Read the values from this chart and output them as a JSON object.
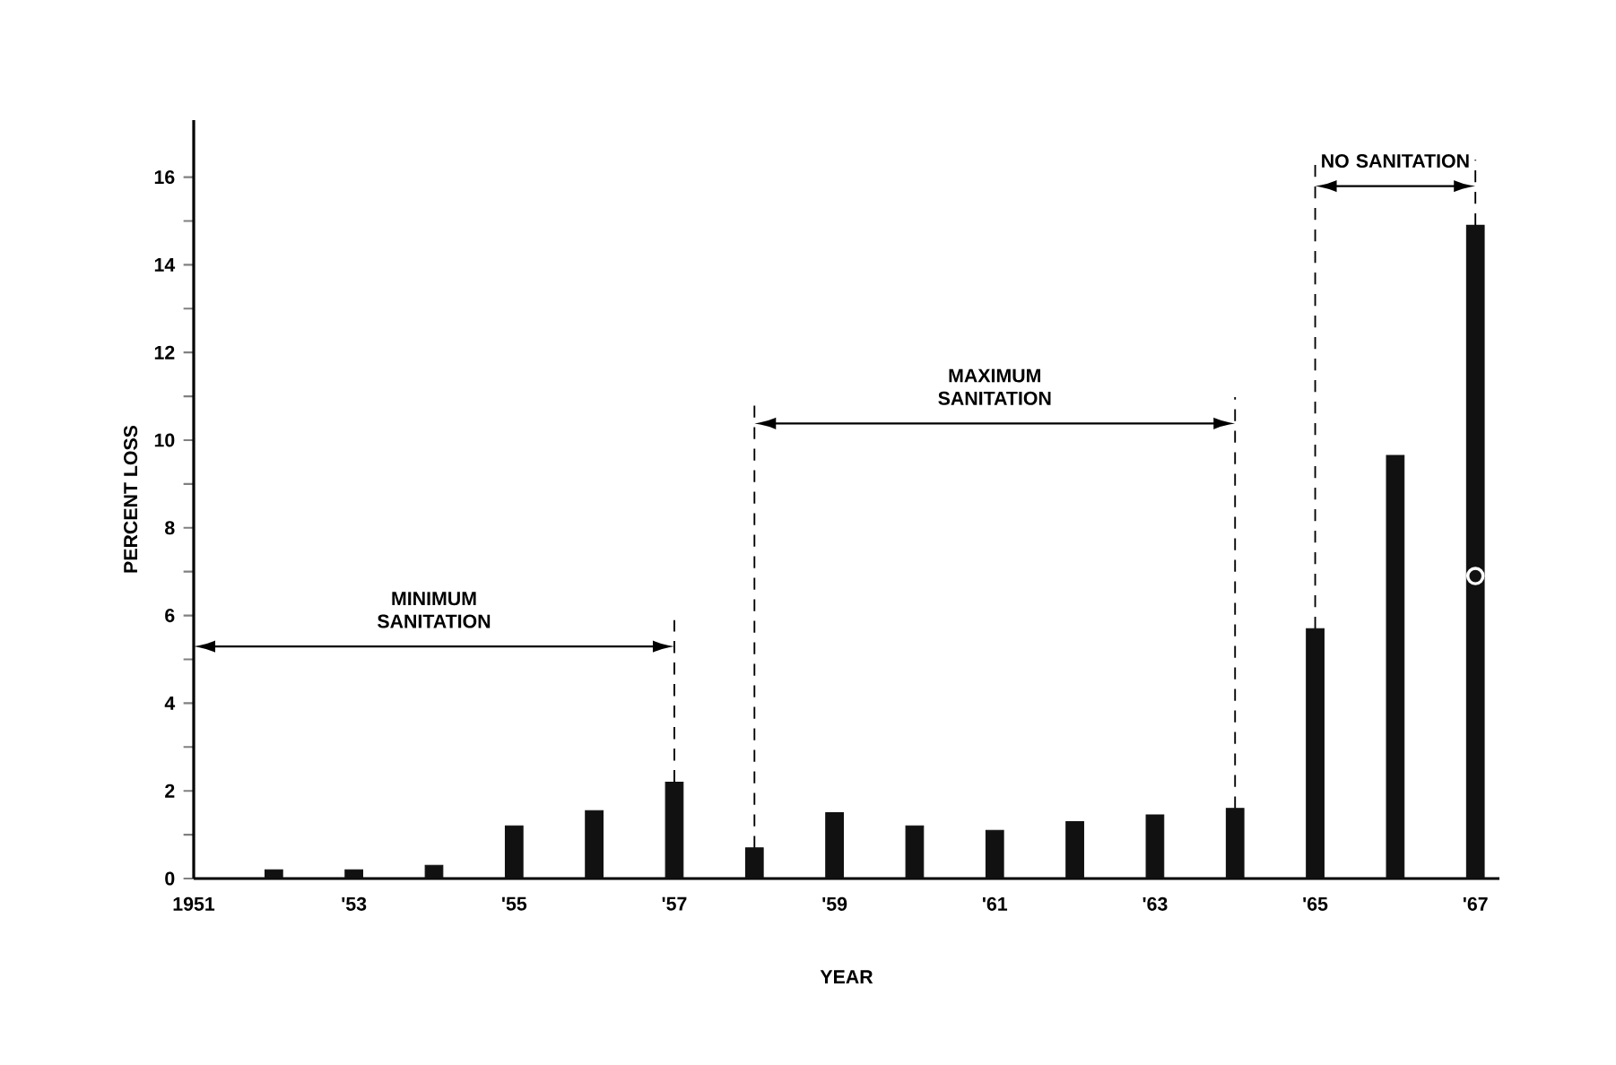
{
  "chart_data": {
    "type": "bar",
    "xlabel": "YEAR",
    "ylabel": "PERCENT LOSS",
    "x": [
      1952,
      1953,
      1954,
      1955,
      1956,
      1957,
      1958,
      1959,
      1960,
      1961,
      1962,
      1963,
      1964,
      1965,
      1966,
      1967
    ],
    "series": [
      {
        "color": "#111111",
        "values": [
          0.2,
          0.2,
          0.3,
          1.2,
          1.55,
          2.2,
          0.7,
          1.5,
          1.2,
          1.1,
          1.3,
          1.45,
          1.6,
          5.7,
          9.65,
          14.9
        ]
      },
      {
        "type": "scatter",
        "marker": "circle",
        "color": "#ffffff",
        "x": [
          1967
        ],
        "values": [
          6.9
        ]
      }
    ],
    "xlim": [
      1951,
      1967.3
    ],
    "ylim": [
      0,
      17.3
    ],
    "xticks": [
      {
        "value": 1951,
        "label": "1951"
      },
      {
        "value": 1953,
        "label": "'53"
      },
      {
        "value": 1955,
        "label": "'55"
      },
      {
        "value": 1957,
        "label": "'57"
      },
      {
        "value": 1959,
        "label": "'59"
      },
      {
        "value": 1961,
        "label": "'61"
      },
      {
        "value": 1963,
        "label": "'63"
      },
      {
        "value": 1965,
        "label": "'65"
      },
      {
        "value": 1967,
        "label": "'67"
      }
    ],
    "yticks": [
      0,
      {
        "value": 1,
        "label": null
      },
      2,
      {
        "value": 3,
        "label": null
      },
      4,
      {
        "value": 5,
        "label": null
      },
      6,
      {
        "value": 7,
        "label": null
      },
      8,
      {
        "value": 9,
        "label": null
      },
      10,
      {
        "value": 11,
        "label": null
      },
      12,
      {
        "value": 13,
        "label": null
      },
      14,
      {
        "value": 15,
        "label": null
      },
      16
    ],
    "ref_lines": [
      {
        "axis": "x",
        "value": 1957,
        "line_style": "dashed"
      },
      {
        "axis": "x",
        "value": 1958,
        "line_style": "dashed"
      },
      {
        "axis": "x",
        "value": 1964,
        "line_style": "dashed"
      },
      {
        "axis": "x",
        "value": 1965,
        "line_style": "dashed"
      },
      {
        "axis": "x",
        "value": 1967,
        "line_style": "dashed"
      }
    ],
    "annotations": [
      "MINIMUM SANITATION",
      "MAXIMUM SANITATION",
      "NO SANITATION"
    ]
  }
}
